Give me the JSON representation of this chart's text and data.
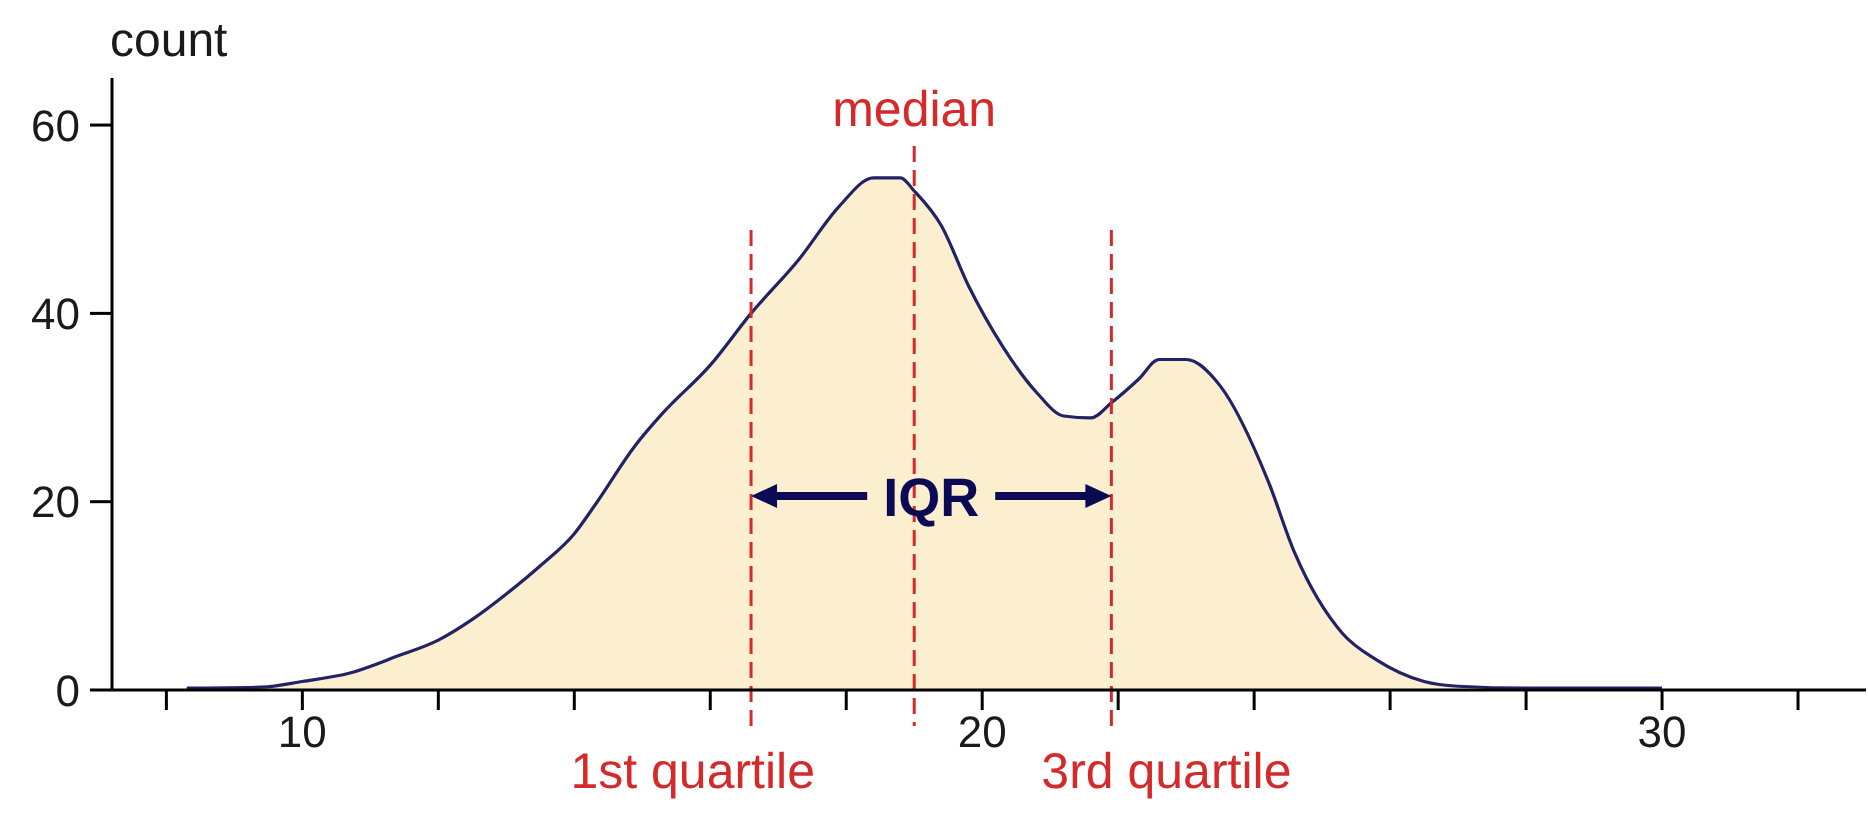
{
  "chart_data": {
    "type": "area",
    "ylabel": "count",
    "x": [
      8.3,
      9.4,
      10,
      10.7,
      11.4,
      12,
      12.5,
      13,
      13.5,
      14,
      14.3,
      14.9,
      15.3,
      16,
      16.6,
      17.3,
      17.9,
      18.4,
      18.8,
      19.0,
      19.4,
      19.8,
      20.3,
      20.8,
      21.2,
      21.6,
      21.9,
      22.3,
      22.6,
      23.0,
      23.5,
      24.2,
      24.6,
      25.3,
      25.8,
      26.5,
      27,
      28,
      30
    ],
    "color": "#fcefcf",
    "values": [
      0.2,
      0.3,
      0.9,
      1.8,
      3.6,
      5.3,
      7.5,
      10.2,
      13.2,
      16.6,
      19.6,
      26,
      29.4,
      34.5,
      40,
      45.7,
      51.4,
      54.4,
      54.4,
      53,
      49.3,
      42.9,
      36.5,
      31.6,
      29.1,
      28.9,
      30.5,
      33,
      35.1,
      35.1,
      32.3,
      22.3,
      14.5,
      6,
      3.2,
      0.9,
      0.4,
      0.2,
      0.2
    ],
    "xlim": [
      7.2,
      33
    ],
    "ylim": [
      0,
      65
    ],
    "xticks": [
      {
        "value": 8,
        "label": null
      },
      10,
      {
        "value": 12,
        "label": null
      },
      {
        "value": 14,
        "label": null
      },
      {
        "value": 16,
        "label": null
      },
      {
        "value": 18,
        "label": null
      },
      20,
      {
        "value": 22,
        "label": null
      },
      {
        "value": 24,
        "label": null
      },
      {
        "value": 26,
        "label": null
      },
      {
        "value": 28,
        "label": null
      },
      30,
      {
        "value": 32,
        "label": null
      }
    ],
    "yticks": [
      0,
      20,
      40,
      60
    ],
    "ref_lines": [
      {
        "axis": "x",
        "value": 16.6,
        "label": "1st quartile",
        "color": "#d42a2a",
        "line_style": "dashed"
      },
      {
        "axis": "x",
        "value": 19.0,
        "label": "median",
        "color": "#d42a2a",
        "line_style": "dashed"
      },
      {
        "axis": "x",
        "value": 21.9,
        "label": "3rd quartile",
        "color": "#d42a2a",
        "line_style": "dashed"
      }
    ],
    "annotations": [
      "IQR"
    ],
    "marker": "none"
  }
}
